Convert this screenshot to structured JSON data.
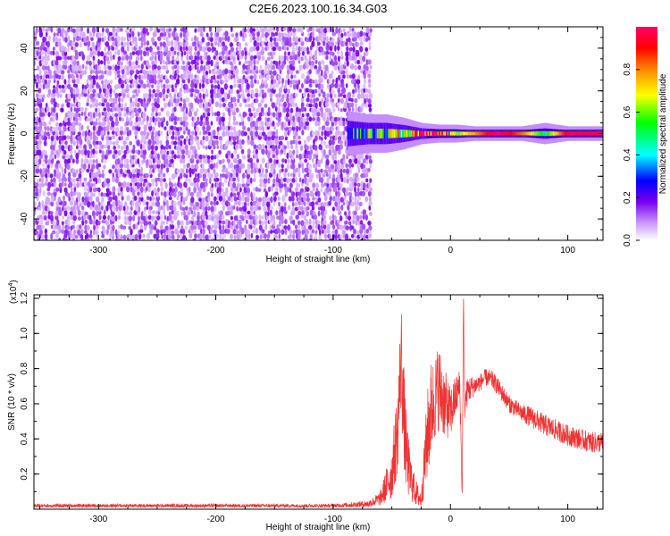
{
  "title": "C2E6.2023.100.16.34.G03",
  "chart_data": [
    {
      "type": "heatmap",
      "xlabel": "Height of straight line (km)",
      "ylabel": "Frequency (Hz)",
      "xlim": [
        -355,
        130
      ],
      "ylim": [
        -50,
        50
      ],
      "xticks": [
        -300,
        -200,
        -100,
        0,
        100
      ],
      "yticks": [
        -40,
        -20,
        0,
        20,
        40
      ],
      "colorbar": {
        "label": "Normalized spectral amplitude",
        "range": [
          0,
          1
        ],
        "ticks": [
          "0.0",
          "0.2",
          "0.4",
          "0.6",
          "0.8"
        ],
        "colors": [
          "#ffffff",
          "#cc99ff",
          "#7700ee",
          "#0000ff",
          "#00ffff",
          "#00ff00",
          "#ffff00",
          "#ff8800",
          "#ff0000",
          "#ff0066"
        ]
      },
      "noise_region": {
        "x_range": [
          -355,
          -68
        ],
        "freq_range": [
          -50,
          50
        ],
        "amplitude": "0.1-0.3"
      },
      "signal_band": {
        "freq": 0,
        "points": [
          {
            "x": -88,
            "halfwidth": 6,
            "amplitude": 0.35
          },
          {
            "x": -70,
            "halfwidth": 5,
            "amplitude": 0.45
          },
          {
            "x": -55,
            "halfwidth": 5,
            "amplitude": 0.55
          },
          {
            "x": -40,
            "halfwidth": 4,
            "amplitude": 0.6
          },
          {
            "x": -25,
            "halfwidth": 2.5,
            "amplitude": 0.95
          },
          {
            "x": -10,
            "halfwidth": 2,
            "amplitude": 0.9
          },
          {
            "x": 5,
            "halfwidth": 2,
            "amplitude": 0.6
          },
          {
            "x": 20,
            "halfwidth": 1.5,
            "amplitude": 0.75
          },
          {
            "x": 40,
            "halfwidth": 1.5,
            "amplitude": 1.0
          },
          {
            "x": 60,
            "halfwidth": 1.5,
            "amplitude": 0.8
          },
          {
            "x": 80,
            "halfwidth": 2.5,
            "amplitude": 0.5
          },
          {
            "x": 100,
            "halfwidth": 1.5,
            "amplitude": 0.95
          },
          {
            "x": 130,
            "halfwidth": 1.5,
            "amplitude": 0.95
          }
        ]
      }
    },
    {
      "type": "line",
      "xlabel": "Height of straight line (km)",
      "ylabel": "SNR (10 * v/v)",
      "yscale_label": "(x10",
      "yscale_exp": "4",
      "yscale_close": ")",
      "xlim": [
        -355,
        130
      ],
      "ylim": [
        0,
        1.22
      ],
      "xticks": [
        -300,
        -200,
        -100,
        0,
        100
      ],
      "yticks": [
        "0.2",
        "0.4",
        "0.6",
        "0.8",
        "1.0",
        "1.2"
      ],
      "color": "#ee3333",
      "x": [
        -355,
        -300,
        -200,
        -100,
        -70,
        -60,
        -50,
        -45,
        -42,
        -40,
        -38,
        -35,
        -30,
        -25,
        -20,
        -17,
        -15,
        -10,
        -5,
        0,
        5,
        8,
        10,
        11,
        12,
        15,
        20,
        25,
        30,
        35,
        40,
        50,
        60,
        70,
        80,
        90,
        100,
        110,
        120,
        130
      ],
      "y": [
        0.02,
        0.02,
        0.02,
        0.02,
        0.03,
        0.06,
        0.2,
        0.45,
        0.9,
        0.55,
        0.35,
        0.2,
        0.1,
        0.05,
        0.4,
        0.55,
        0.6,
        0.7,
        0.6,
        0.55,
        0.65,
        0.7,
        0.05,
        1.22,
        0.6,
        0.68,
        0.7,
        0.72,
        0.75,
        0.74,
        0.7,
        0.6,
        0.55,
        0.52,
        0.48,
        0.45,
        0.42,
        0.4,
        0.38,
        0.38
      ],
      "noise": [
        0.01,
        0.01,
        0.01,
        0.01,
        0.02,
        0.04,
        0.15,
        0.25,
        0.3,
        0.3,
        0.25,
        0.15,
        0.08,
        0.05,
        0.25,
        0.3,
        0.25,
        0.25,
        0.2,
        0.15,
        0.12,
        0.1,
        0.03,
        0.1,
        0.1,
        0.08,
        0.06,
        0.05,
        0.05,
        0.05,
        0.05,
        0.05,
        0.05,
        0.06,
        0.06,
        0.06,
        0.06,
        0.06,
        0.06,
        0.06
      ]
    }
  ]
}
